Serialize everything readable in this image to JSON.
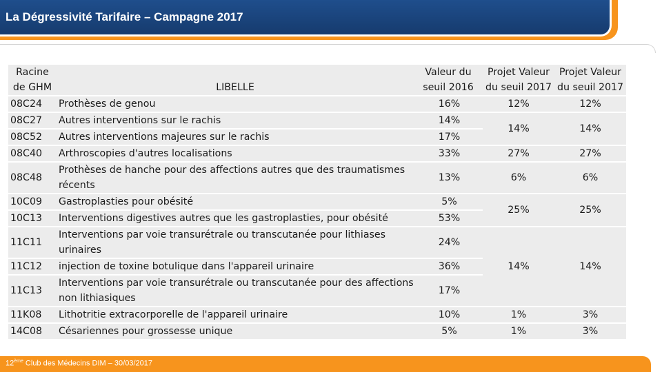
{
  "header": {
    "title": "La Dégressivité Tarifaire – Campagne 2017"
  },
  "table": {
    "col_racine": "Racine de GHM",
    "col_racine_l1": "Racine",
    "col_racine_l2": "de GHM",
    "col_libelle": "LIBELLE",
    "col_valeur_l1": "Valeur du",
    "col_valeur_l2": "seuil 2016",
    "col_projet1_l1": "Projet Valeur",
    "col_projet1_l2": "du seuil 2017",
    "col_projet2_l1": "Projet Valeur",
    "col_projet2_l2": "du seuil 2017",
    "rows": [
      {
        "code": "08C24",
        "libelle": "Prothèses de genou",
        "valeur_2016": "16%"
      },
      {
        "code": "08C27",
        "libelle": "Autres interventions sur le rachis",
        "valeur_2016": "14%"
      },
      {
        "code": "08C52",
        "libelle": "Autres interventions majeures sur le rachis",
        "valeur_2016": "17%"
      },
      {
        "code": "08C40",
        "libelle": "Arthroscopies d'autres localisations",
        "valeur_2016": "33%"
      },
      {
        "code": "08C48",
        "libelle": "Prothèses de hanche pour des affections autres que des traumatismes récents",
        "valeur_2016": "13%"
      },
      {
        "code": "10C09",
        "libelle": "Gastroplasties pour obésité",
        "valeur_2016": "5%"
      },
      {
        "code": "10C13",
        "libelle": "Interventions digestives autres que les gastroplasties, pour obésité",
        "valeur_2016": "53%"
      },
      {
        "code": "11C11",
        "libelle": "Interventions par voie transurétrale ou transcutanée pour lithiases urinaires",
        "valeur_2016": "24%"
      },
      {
        "code": "11C12",
        "libelle": "injection de toxine botulique dans l'appareil urinaire",
        "valeur_2016": "36%"
      },
      {
        "code": "11C13",
        "libelle": "Interventions par voie transurétrale ou transcutanée pour des affections non lithiasiques",
        "valeur_2016": "17%"
      },
      {
        "code": "11K08",
        "libelle": "Lithotritie extracorporelle de l'appareil urinaire",
        "valeur_2016": "10%"
      },
      {
        "code": "14C08",
        "libelle": "Césariennes pour grossesse unique",
        "valeur_2016": "5%"
      }
    ],
    "projet_groups": [
      {
        "p1": "12%",
        "p2": "12%"
      },
      {
        "p1": "14%",
        "p2": "14%"
      },
      {
        "p1": "27%",
        "p2": "27%"
      },
      {
        "p1": "6%",
        "p2": "6%"
      },
      {
        "p1": "25%",
        "p2": "25%"
      },
      {
        "p1": "14%",
        "p2": "14%"
      },
      {
        "p1": "1%",
        "p2": "3%"
      },
      {
        "p1": "1%",
        "p2": "3%"
      }
    ]
  },
  "footer": {
    "number": "12",
    "superscript": "ème",
    "text": " Club des Médecins DIM – 30/03/2017"
  }
}
